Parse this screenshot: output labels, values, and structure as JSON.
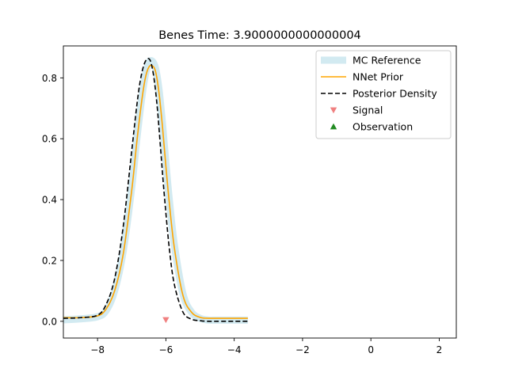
{
  "chart_data": {
    "type": "line",
    "title": "Benes Time: 3.9000000000000004",
    "xlabel": "",
    "ylabel": "",
    "xlim": [
      -9,
      2.5
    ],
    "ylim": [
      -0.055,
      0.905
    ],
    "xticks": [
      -8,
      -6,
      -4,
      -2,
      0,
      2
    ],
    "xtick_labels": [
      "−8",
      "−6",
      "−4",
      "−2",
      "0",
      "2"
    ],
    "yticks": [
      0.0,
      0.2,
      0.4,
      0.6,
      0.8
    ],
    "ytick_labels": [
      "0.0",
      "0.2",
      "0.4",
      "0.6",
      "0.8"
    ],
    "grid": false,
    "legend_position": "upper right",
    "series": [
      {
        "name": "MC Reference",
        "style": "thick-line",
        "color": "#add8e6",
        "x": [
          -9.0,
          -8.5,
          -8.0,
          -7.75,
          -7.5,
          -7.25,
          -7.0,
          -6.85,
          -6.7,
          -6.6,
          -6.5,
          -6.4,
          -6.3,
          -6.2,
          -6.1,
          -6.0,
          -5.9,
          -5.75,
          -5.5,
          -5.25,
          -5.0,
          -4.75,
          -4.5,
          -4.0,
          -3.6
        ],
        "y": [
          0.005,
          0.008,
          0.015,
          0.035,
          0.1,
          0.23,
          0.44,
          0.6,
          0.74,
          0.81,
          0.85,
          0.855,
          0.83,
          0.76,
          0.65,
          0.52,
          0.4,
          0.25,
          0.09,
          0.03,
          0.01,
          0.004,
          0.004,
          0.004,
          0.004
        ]
      },
      {
        "name": "NNet Prior",
        "style": "solid",
        "color": "#ffa500",
        "x": [
          -9.0,
          -8.5,
          -8.0,
          -7.75,
          -7.5,
          -7.25,
          -7.0,
          -6.85,
          -6.7,
          -6.6,
          -6.5,
          -6.4,
          -6.3,
          -6.2,
          -6.1,
          -6.0,
          -5.9,
          -5.75,
          -5.5,
          -5.25,
          -5.0,
          -4.75,
          -4.5,
          -4.0,
          -3.6
        ],
        "y": [
          0.012,
          0.012,
          0.018,
          0.04,
          0.1,
          0.22,
          0.43,
          0.59,
          0.73,
          0.8,
          0.835,
          0.84,
          0.82,
          0.75,
          0.64,
          0.51,
          0.39,
          0.24,
          0.085,
          0.03,
          0.013,
          0.01,
          0.01,
          0.01,
          0.01
        ]
      },
      {
        "name": "Posterior Density",
        "style": "dashed",
        "color": "#000000",
        "x": [
          -9.0,
          -8.5,
          -8.0,
          -7.75,
          -7.5,
          -7.25,
          -7.0,
          -6.85,
          -6.75,
          -6.65,
          -6.55,
          -6.45,
          -6.35,
          -6.25,
          -6.15,
          -6.05,
          -5.9,
          -5.75,
          -5.5,
          -5.25,
          -5.0,
          -4.75,
          -4.5,
          -4.0,
          -3.6
        ],
        "y": [
          0.01,
          0.012,
          0.02,
          0.055,
          0.14,
          0.31,
          0.56,
          0.71,
          0.79,
          0.84,
          0.862,
          0.855,
          0.8,
          0.7,
          0.56,
          0.42,
          0.24,
          0.12,
          0.03,
          0.007,
          0.002,
          0.0,
          0.0,
          0.0,
          0.0
        ]
      }
    ],
    "markers": [
      {
        "name": "Signal",
        "shape": "triangle-down",
        "color": "#f08080",
        "x": -6.0,
        "y": 0.005
      },
      {
        "name": "Observation",
        "shape": "triangle-up",
        "color": "#228b22"
      }
    ]
  }
}
